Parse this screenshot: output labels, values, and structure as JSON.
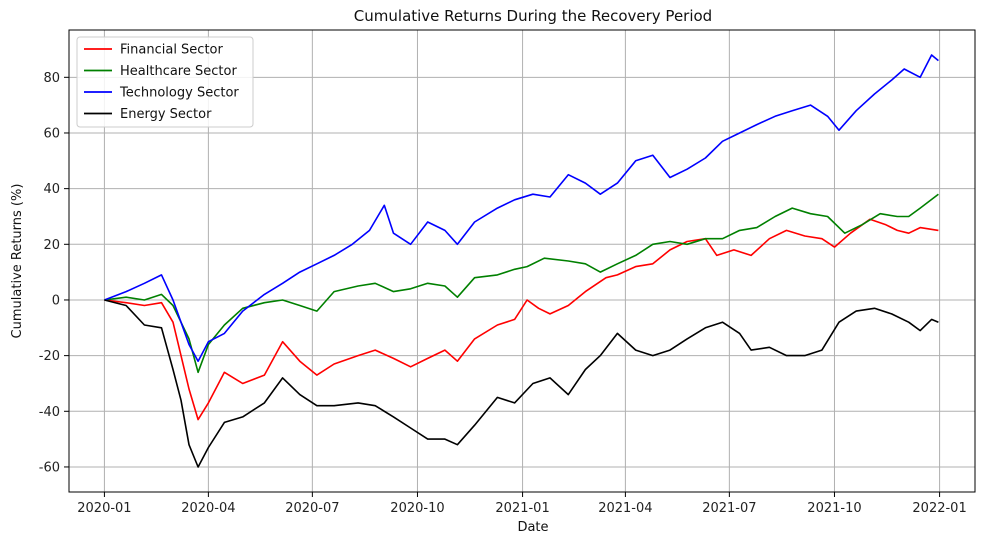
{
  "chart_data": {
    "type": "line",
    "title": "Cumulative Returns During the Recovery Period",
    "xlabel": "Date",
    "ylabel": "Cumulative Returns (%)",
    "x_ticks": [
      "2020-01",
      "2020-04",
      "2020-07",
      "2020-10",
      "2021-01",
      "2021-04",
      "2021-07",
      "2021-10",
      "2022-01"
    ],
    "y_ticks": [
      -60,
      -40,
      -20,
      0,
      20,
      40,
      60,
      80
    ],
    "xlim": [
      "2019-12-01",
      "2022-02-01"
    ],
    "ylim": [
      -69,
      97
    ],
    "grid": true,
    "legend_position": "upper left",
    "series": [
      {
        "name": "Financial Sector",
        "color": "#ff0000",
        "points": [
          [
            "2020-01-01",
            0
          ],
          [
            "2020-01-20",
            -1
          ],
          [
            "2020-02-05",
            -2
          ],
          [
            "2020-02-20",
            -1
          ],
          [
            "2020-03-01",
            -8
          ],
          [
            "2020-03-08",
            -20
          ],
          [
            "2020-03-15",
            -32
          ],
          [
            "2020-03-23",
            -43
          ],
          [
            "2020-04-01",
            -37
          ],
          [
            "2020-04-15",
            -26
          ],
          [
            "2020-05-01",
            -30
          ],
          [
            "2020-05-20",
            -27
          ],
          [
            "2020-06-05",
            -15
          ],
          [
            "2020-06-20",
            -22
          ],
          [
            "2020-07-05",
            -27
          ],
          [
            "2020-07-20",
            -23
          ],
          [
            "2020-08-10",
            -20
          ],
          [
            "2020-08-25",
            -18
          ],
          [
            "2020-09-10",
            -21
          ],
          [
            "2020-09-25",
            -24
          ],
          [
            "2020-10-10",
            -21
          ],
          [
            "2020-10-25",
            -18
          ],
          [
            "2020-11-05",
            -22
          ],
          [
            "2020-11-20",
            -14
          ],
          [
            "2020-12-10",
            -9
          ],
          [
            "2020-12-25",
            -7
          ],
          [
            "2021-01-05",
            0
          ],
          [
            "2021-01-15",
            -3
          ],
          [
            "2021-01-25",
            -5
          ],
          [
            "2021-02-10",
            -2
          ],
          [
            "2021-02-25",
            3
          ],
          [
            "2021-03-15",
            8
          ],
          [
            "2021-03-25",
            9
          ],
          [
            "2021-04-10",
            12
          ],
          [
            "2021-04-25",
            13
          ],
          [
            "2021-05-10",
            18
          ],
          [
            "2021-05-25",
            21
          ],
          [
            "2021-06-10",
            22
          ],
          [
            "2021-06-20",
            16
          ],
          [
            "2021-07-05",
            18
          ],
          [
            "2021-07-20",
            16
          ],
          [
            "2021-08-05",
            22
          ],
          [
            "2021-08-20",
            25
          ],
          [
            "2021-09-05",
            23
          ],
          [
            "2021-09-20",
            22
          ],
          [
            "2021-10-01",
            19
          ],
          [
            "2021-10-15",
            24
          ],
          [
            "2021-11-01",
            29
          ],
          [
            "2021-11-15",
            27
          ],
          [
            "2021-11-25",
            25
          ],
          [
            "2021-12-05",
            24
          ],
          [
            "2021-12-15",
            26
          ],
          [
            "2021-12-31",
            25
          ]
        ]
      },
      {
        "name": "Healthcare Sector",
        "color": "#008000",
        "points": [
          [
            "2020-01-01",
            0
          ],
          [
            "2020-01-20",
            1
          ],
          [
            "2020-02-05",
            0
          ],
          [
            "2020-02-20",
            2
          ],
          [
            "2020-03-01",
            -2
          ],
          [
            "2020-03-08",
            -8
          ],
          [
            "2020-03-15",
            -14
          ],
          [
            "2020-03-23",
            -26
          ],
          [
            "2020-04-01",
            -16
          ],
          [
            "2020-04-15",
            -9
          ],
          [
            "2020-05-01",
            -3
          ],
          [
            "2020-05-20",
            -1
          ],
          [
            "2020-06-05",
            0
          ],
          [
            "2020-06-20",
            -2
          ],
          [
            "2020-07-05",
            -4
          ],
          [
            "2020-07-20",
            3
          ],
          [
            "2020-08-10",
            5
          ],
          [
            "2020-08-25",
            6
          ],
          [
            "2020-09-10",
            3
          ],
          [
            "2020-09-25",
            4
          ],
          [
            "2020-10-10",
            6
          ],
          [
            "2020-10-25",
            5
          ],
          [
            "2020-11-05",
            1
          ],
          [
            "2020-11-20",
            8
          ],
          [
            "2020-12-10",
            9
          ],
          [
            "2020-12-25",
            11
          ],
          [
            "2021-01-05",
            12
          ],
          [
            "2021-01-20",
            15
          ],
          [
            "2021-02-10",
            14
          ],
          [
            "2021-02-25",
            13
          ],
          [
            "2021-03-10",
            10
          ],
          [
            "2021-03-25",
            13
          ],
          [
            "2021-04-10",
            16
          ],
          [
            "2021-04-25",
            20
          ],
          [
            "2021-05-10",
            21
          ],
          [
            "2021-05-25",
            20
          ],
          [
            "2021-06-10",
            22
          ],
          [
            "2021-06-25",
            22
          ],
          [
            "2021-07-10",
            25
          ],
          [
            "2021-07-25",
            26
          ],
          [
            "2021-08-10",
            30
          ],
          [
            "2021-08-25",
            33
          ],
          [
            "2021-09-10",
            31
          ],
          [
            "2021-09-25",
            30
          ],
          [
            "2021-10-10",
            24
          ],
          [
            "2021-10-25",
            27
          ],
          [
            "2021-11-10",
            31
          ],
          [
            "2021-11-25",
            30
          ],
          [
            "2021-12-05",
            30
          ],
          [
            "2021-12-15",
            33
          ],
          [
            "2021-12-31",
            38
          ]
        ]
      },
      {
        "name": "Technology Sector",
        "color": "#0000ff",
        "points": [
          [
            "2020-01-01",
            0
          ],
          [
            "2020-01-20",
            3
          ],
          [
            "2020-02-05",
            6
          ],
          [
            "2020-02-20",
            9
          ],
          [
            "2020-03-01",
            0
          ],
          [
            "2020-03-08",
            -8
          ],
          [
            "2020-03-15",
            -16
          ],
          [
            "2020-03-23",
            -22
          ],
          [
            "2020-04-01",
            -15
          ],
          [
            "2020-04-15",
            -12
          ],
          [
            "2020-05-01",
            -4
          ],
          [
            "2020-05-20",
            2
          ],
          [
            "2020-06-05",
            6
          ],
          [
            "2020-06-20",
            10
          ],
          [
            "2020-07-05",
            13
          ],
          [
            "2020-07-20",
            16
          ],
          [
            "2020-08-05",
            20
          ],
          [
            "2020-08-20",
            25
          ],
          [
            "2020-09-02",
            34
          ],
          [
            "2020-09-10",
            24
          ],
          [
            "2020-09-25",
            20
          ],
          [
            "2020-10-10",
            28
          ],
          [
            "2020-10-25",
            25
          ],
          [
            "2020-11-05",
            20
          ],
          [
            "2020-11-20",
            28
          ],
          [
            "2020-12-10",
            33
          ],
          [
            "2020-12-25",
            36
          ],
          [
            "2021-01-10",
            38
          ],
          [
            "2021-01-25",
            37
          ],
          [
            "2021-02-10",
            45
          ],
          [
            "2021-02-25",
            42
          ],
          [
            "2021-03-10",
            38
          ],
          [
            "2021-03-25",
            42
          ],
          [
            "2021-04-10",
            50
          ],
          [
            "2021-04-25",
            52
          ],
          [
            "2021-05-10",
            44
          ],
          [
            "2021-05-25",
            47
          ],
          [
            "2021-06-10",
            51
          ],
          [
            "2021-06-25",
            57
          ],
          [
            "2021-07-10",
            60
          ],
          [
            "2021-07-25",
            63
          ],
          [
            "2021-08-10",
            66
          ],
          [
            "2021-08-25",
            68
          ],
          [
            "2021-09-10",
            70
          ],
          [
            "2021-09-25",
            66
          ],
          [
            "2021-10-05",
            61
          ],
          [
            "2021-10-20",
            68
          ],
          [
            "2021-11-05",
            74
          ],
          [
            "2021-11-20",
            79
          ],
          [
            "2021-12-01",
            83
          ],
          [
            "2021-12-15",
            80
          ],
          [
            "2021-12-25",
            88
          ],
          [
            "2021-12-31",
            86
          ]
        ]
      },
      {
        "name": "Energy Sector",
        "color": "#000000",
        "points": [
          [
            "2020-01-01",
            0
          ],
          [
            "2020-01-20",
            -2
          ],
          [
            "2020-02-05",
            -9
          ],
          [
            "2020-02-20",
            -10
          ],
          [
            "2020-03-01",
            -25
          ],
          [
            "2020-03-08",
            -36
          ],
          [
            "2020-03-15",
            -52
          ],
          [
            "2020-03-23",
            -60
          ],
          [
            "2020-04-01",
            -53
          ],
          [
            "2020-04-15",
            -44
          ],
          [
            "2020-05-01",
            -42
          ],
          [
            "2020-05-20",
            -37
          ],
          [
            "2020-06-05",
            -28
          ],
          [
            "2020-06-20",
            -34
          ],
          [
            "2020-07-05",
            -38
          ],
          [
            "2020-07-20",
            -38
          ],
          [
            "2020-08-10",
            -37
          ],
          [
            "2020-08-25",
            -38
          ],
          [
            "2020-09-10",
            -42
          ],
          [
            "2020-09-25",
            -46
          ],
          [
            "2020-10-10",
            -50
          ],
          [
            "2020-10-25",
            -50
          ],
          [
            "2020-11-05",
            -52
          ],
          [
            "2020-11-20",
            -45
          ],
          [
            "2020-12-10",
            -35
          ],
          [
            "2020-12-25",
            -37
          ],
          [
            "2021-01-10",
            -30
          ],
          [
            "2021-01-25",
            -28
          ],
          [
            "2021-02-10",
            -34
          ],
          [
            "2021-02-25",
            -25
          ],
          [
            "2021-03-10",
            -20
          ],
          [
            "2021-03-25",
            -12
          ],
          [
            "2021-04-10",
            -18
          ],
          [
            "2021-04-25",
            -20
          ],
          [
            "2021-05-10",
            -18
          ],
          [
            "2021-05-25",
            -14
          ],
          [
            "2021-06-10",
            -10
          ],
          [
            "2021-06-25",
            -8
          ],
          [
            "2021-07-10",
            -12
          ],
          [
            "2021-07-20",
            -18
          ],
          [
            "2021-08-05",
            -17
          ],
          [
            "2021-08-20",
            -20
          ],
          [
            "2021-09-05",
            -20
          ],
          [
            "2021-09-20",
            -18
          ],
          [
            "2021-10-05",
            -8
          ],
          [
            "2021-10-20",
            -4
          ],
          [
            "2021-11-05",
            -3
          ],
          [
            "2021-11-20",
            -5
          ],
          [
            "2021-12-05",
            -8
          ],
          [
            "2021-12-15",
            -11
          ],
          [
            "2021-12-25",
            -7
          ],
          [
            "2021-12-31",
            -8
          ]
        ]
      }
    ]
  }
}
